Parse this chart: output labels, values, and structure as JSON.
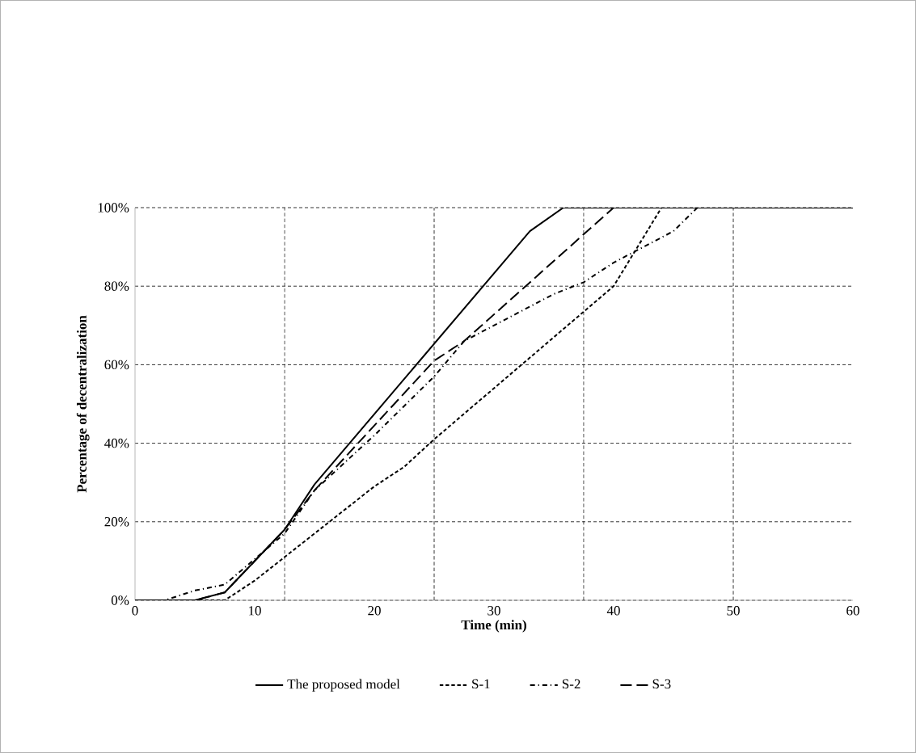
{
  "chart_data": {
    "type": "line",
    "xlabel": "Time (min)",
    "ylabel": "Percentage of decentralization",
    "xlim": [
      0,
      60
    ],
    "xticks": [
      0,
      10,
      20,
      30,
      40,
      50,
      60
    ],
    "ylim": [
      0,
      100
    ],
    "yticks": [
      {
        "value": 0,
        "label": "0%"
      },
      {
        "value": 20,
        "label": "20%"
      },
      {
        "value": 40,
        "label": "40%"
      },
      {
        "value": 60,
        "label": "60%"
      },
      {
        "value": 80,
        "label": "80%"
      },
      {
        "value": 100,
        "label": "100%"
      }
    ],
    "grid": "y",
    "legend": "bottom",
    "marker": "none",
    "ref_lines": [
      {
        "axis": "x",
        "value": 12.5,
        "line_style": "dashed"
      },
      {
        "axis": "x",
        "value": 25,
        "line_style": "dashed"
      },
      {
        "axis": "x",
        "value": 37.5,
        "line_style": "dashed"
      },
      {
        "axis": "x",
        "value": 50,
        "line_style": "dashed"
      }
    ],
    "series": [
      {
        "name": "The proposed model",
        "color": "#000000",
        "line_style": "solid",
        "x": [
          0,
          5,
          7.5,
          12.5,
          15,
          33,
          35.8,
          60
        ],
        "values": [
          0,
          0,
          2,
          18,
          29.5,
          94,
          100,
          100
        ]
      },
      {
        "name": "S-1",
        "color": "#000000",
        "line_style": "dashed",
        "x": [
          0,
          7.5,
          10,
          12.5,
          20,
          22.5,
          25,
          40,
          44
        ],
        "values": [
          0,
          0,
          5,
          11,
          29,
          34,
          41,
          80,
          100
        ]
      },
      {
        "name": "S-2",
        "color": "#000000",
        "line_style": "dashdot",
        "x": [
          0,
          2.5,
          5,
          7.5,
          12.5,
          15,
          20,
          25,
          27.5,
          30,
          32.5,
          35,
          37.5,
          40,
          42.5,
          45,
          47
        ],
        "values": [
          0,
          0,
          2.5,
          4,
          17,
          28,
          42,
          57,
          66,
          70,
          74,
          78,
          81,
          86,
          90,
          94,
          100
        ]
      },
      {
        "name": "S-3",
        "color": "#000000",
        "line_style": "longdashed",
        "x": [
          0,
          5,
          7.5,
          12.5,
          15,
          25,
          27.5,
          40
        ],
        "values": [
          0,
          0,
          2,
          18,
          28,
          61,
          66,
          100
        ]
      }
    ]
  }
}
